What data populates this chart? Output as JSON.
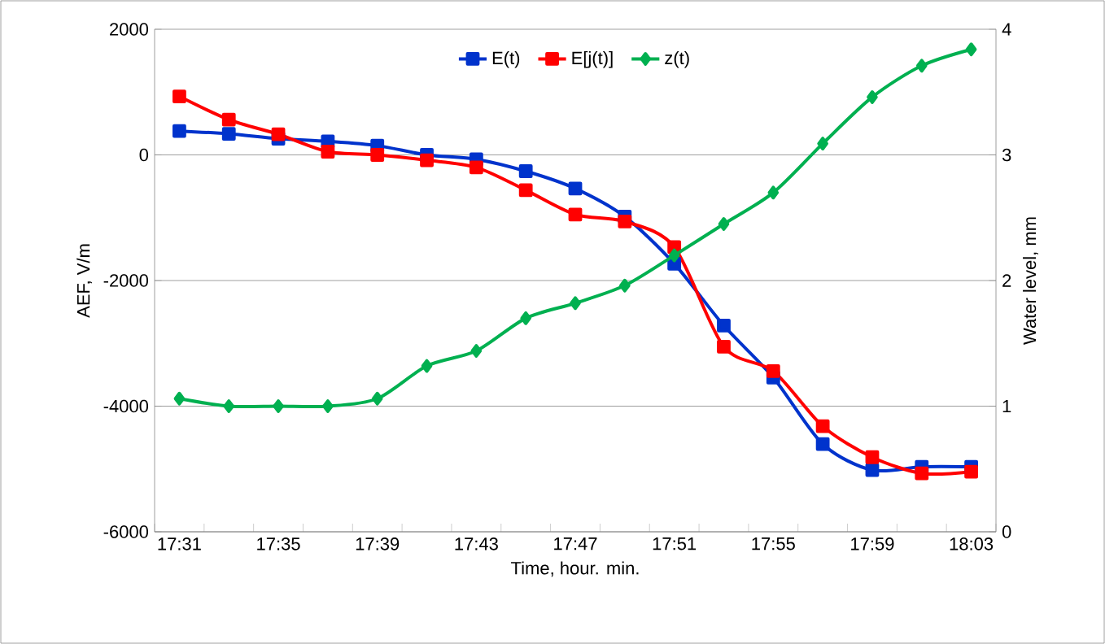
{
  "chart_data": {
    "type": "line",
    "xlabel": "Time, hour. min.",
    "ylabel": "AEF, V/m",
    "y2label": "Water level, mm",
    "categories": [
      "17:31",
      null,
      "17:35",
      null,
      "17:39",
      null,
      "17:43",
      null,
      "17:47",
      null,
      "17:51",
      null,
      "17:55",
      null,
      "17:59",
      null,
      "18:03"
    ],
    "series": [
      {
        "name": "E(t)",
        "color": "#0033cc",
        "marker": "square",
        "values": [
          380,
          336,
          259,
          215,
          147,
          0,
          -70,
          -259,
          -535,
          -983,
          -1733,
          -2716,
          -3544,
          -4604,
          -5018,
          -4966,
          -4966
        ]
      },
      {
        "name": "E[j(t)]",
        "color": "#ff0000",
        "marker": "square",
        "values": [
          931,
          561,
          328,
          52,
          0,
          -85,
          -199,
          -561,
          -949,
          -1061,
          -1467,
          -3053,
          -3441,
          -4320,
          -4812,
          -5070,
          -5044
        ]
      },
      {
        "name": "z(t)",
        "color": "#00b050",
        "marker": "diamond",
        "axis": "y2",
        "values": [
          1.06,
          1.0,
          1.0,
          1.0,
          1.06,
          1.32,
          1.44,
          1.7,
          1.82,
          1.96,
          2.2,
          2.45,
          2.7,
          3.09,
          3.46,
          3.71,
          3.84
        ]
      }
    ],
    "ylim": [
      -6000,
      2000
    ],
    "yticks": [
      -6000,
      -4000,
      -2000,
      0,
      2000
    ],
    "y2lim": [
      0,
      4
    ],
    "y2ticks": [
      0,
      1,
      2,
      3,
      4
    ],
    "grid": "y",
    "legend": "top",
    "line_style": "solid"
  }
}
